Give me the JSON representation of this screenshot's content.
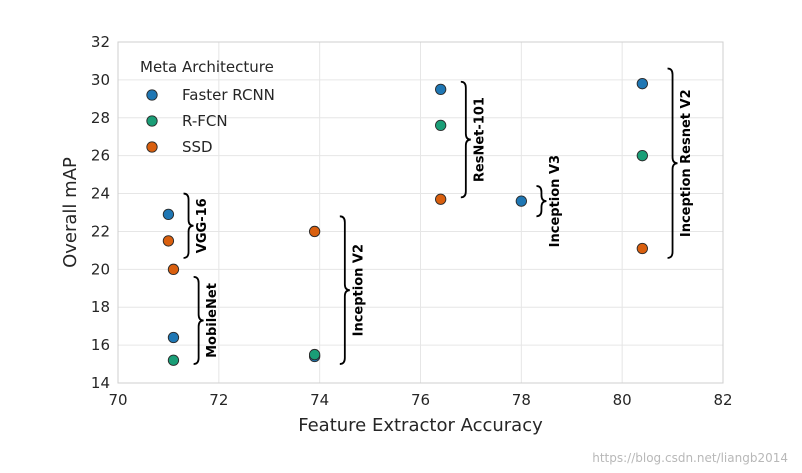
{
  "chart_data": {
    "type": "scatter",
    "title": "",
    "xlabel": "Feature Extractor Accuracy",
    "ylabel": "Overall mAP",
    "xlim": [
      70,
      82
    ],
    "ylim": [
      14,
      32
    ],
    "xticks": [
      "70",
      "72",
      "74",
      "76",
      "78",
      "80",
      "82"
    ],
    "yticks": [
      "14",
      "16",
      "18",
      "20",
      "22",
      "24",
      "26",
      "28",
      "30",
      "32"
    ],
    "grid": true,
    "legend": {
      "title": "Meta Architecture",
      "position": "top-left"
    },
    "series": [
      {
        "name": "Faster RCNN",
        "color": "#1f77b4",
        "points": [
          {
            "x": 71.0,
            "y": 22.9
          },
          {
            "x": 71.1,
            "y": 16.4
          },
          {
            "x": 73.9,
            "y": 15.4
          },
          {
            "x": 76.4,
            "y": 29.5
          },
          {
            "x": 78.0,
            "y": 23.6
          },
          {
            "x": 80.4,
            "y": 29.8
          }
        ]
      },
      {
        "name": "R-FCN",
        "color": "#1a9e77",
        "points": [
          {
            "x": 71.1,
            "y": 15.2
          },
          {
            "x": 73.9,
            "y": 15.5
          },
          {
            "x": 76.4,
            "y": 27.6
          },
          {
            "x": 80.4,
            "y": 26.0
          }
        ]
      },
      {
        "name": "SSD",
        "color": "#d95f0e",
        "points": [
          {
            "x": 71.0,
            "y": 21.5
          },
          {
            "x": 71.1,
            "y": 20.0
          },
          {
            "x": 73.9,
            "y": 22.0
          },
          {
            "x": 76.4,
            "y": 23.7
          },
          {
            "x": 80.4,
            "y": 21.1
          }
        ]
      }
    ],
    "annotations": [
      {
        "text": "VGG-16",
        "x": 71.3,
        "y_range": [
          20.6,
          24.0
        ]
      },
      {
        "text": "MobileNet",
        "x": 71.5,
        "y_range": [
          15.0,
          19.6
        ]
      },
      {
        "text": "Inception V2",
        "x": 74.4,
        "y_range": [
          15.0,
          22.8
        ]
      },
      {
        "text": "ResNet-101",
        "x": 76.8,
        "y_range": [
          23.8,
          29.9
        ]
      },
      {
        "text": "Inception V3",
        "x": 78.3,
        "y_range": [
          22.8,
          24.4
        ]
      },
      {
        "text": "Inception Resnet V2",
        "x": 80.9,
        "y_range": [
          20.6,
          30.6
        ]
      }
    ]
  },
  "watermark": "https://blog.csdn.net/liangb2014"
}
